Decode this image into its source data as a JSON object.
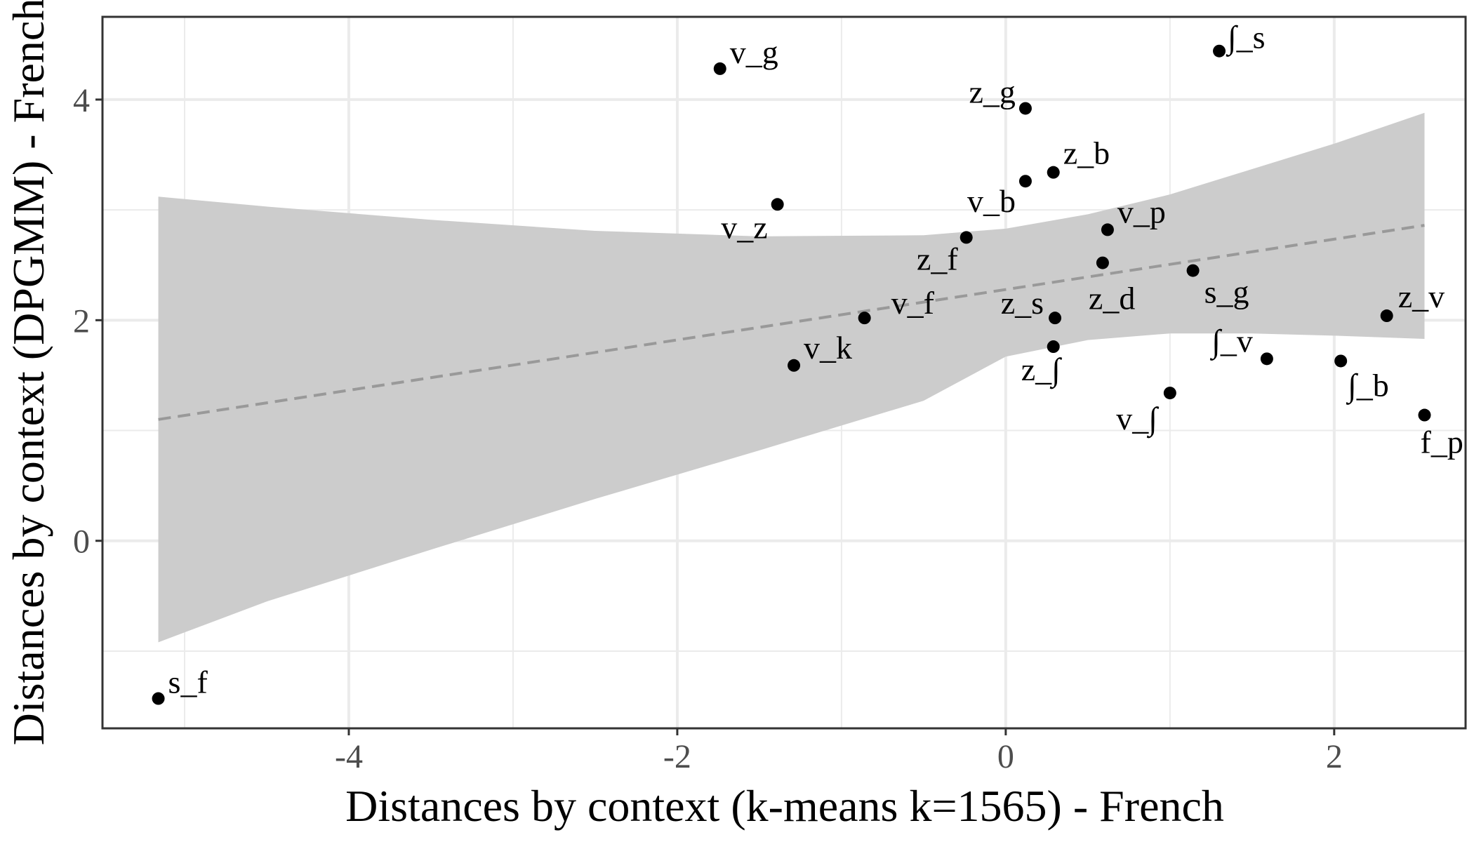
{
  "chart_data": {
    "type": "scatter",
    "title": "",
    "xlabel": "Distances by context (k-means k=1565) - French",
    "ylabel": "Distances by context (DPGMM) - French",
    "xlim": [
      -5.5,
      2.8
    ],
    "ylim": [
      -1.7,
      4.75
    ],
    "x_ticks": [
      -4,
      -2,
      0,
      2
    ],
    "y_ticks": [
      0,
      2,
      4
    ],
    "x_tick_labels": [
      "-4",
      "-2",
      "0",
      "2"
    ],
    "y_tick_labels": [
      "0",
      "2",
      "4"
    ],
    "grid": true,
    "legend": "none",
    "colors": {
      "point": "#000000",
      "trend": "#999999",
      "band": "#cccccc",
      "grid": "#ebebeb",
      "panel_border": "#333333"
    },
    "points": [
      {
        "label": "v_g",
        "x": -1.74,
        "y": 4.28
      },
      {
        "label": "∫_s",
        "x": 1.3,
        "y": 4.44
      },
      {
        "label": "z_g",
        "x": 0.12,
        "y": 3.92
      },
      {
        "label": "z_b",
        "x": 0.29,
        "y": 3.34
      },
      {
        "label": "v_b",
        "x": 0.12,
        "y": 3.26
      },
      {
        "label": "v_z",
        "x": -1.39,
        "y": 3.05
      },
      {
        "label": "v_p",
        "x": 0.62,
        "y": 2.82
      },
      {
        "label": "z_f",
        "x": -0.24,
        "y": 2.75
      },
      {
        "label": "z_d",
        "x": 0.59,
        "y": 2.52
      },
      {
        "label": "s_g",
        "x": 1.14,
        "y": 2.45
      },
      {
        "label": "v_f",
        "x": -0.86,
        "y": 2.02
      },
      {
        "label": "z_s",
        "x": 0.3,
        "y": 2.02
      },
      {
        "label": "z_v",
        "x": 2.32,
        "y": 2.04
      },
      {
        "label": "z_∫",
        "x": 0.29,
        "y": 1.76
      },
      {
        "label": "∫_v",
        "x": 1.59,
        "y": 1.65
      },
      {
        "label": "v_k",
        "x": -1.29,
        "y": 1.59
      },
      {
        "label": "∫_b",
        "x": 2.04,
        "y": 1.63
      },
      {
        "label": "v_∫",
        "x": 1.0,
        "y": 1.34
      },
      {
        "label": "f_p",
        "x": 2.55,
        "y": 1.14
      },
      {
        "label": "s_f",
        "x": -5.16,
        "y": -1.43
      }
    ],
    "trend": {
      "style": "dashed",
      "x": [
        -5.16,
        2.55
      ],
      "y": [
        1.1,
        2.86
      ]
    },
    "confidence_band": {
      "x": [
        -5.16,
        -4.5,
        -3.5,
        -2.5,
        -1.5,
        -0.5,
        0.0,
        0.5,
        1.0,
        1.5,
        2.0,
        2.55
      ],
      "upper": [
        3.12,
        3.03,
        2.91,
        2.81,
        2.76,
        2.77,
        2.83,
        2.96,
        3.14,
        3.37,
        3.6,
        3.88
      ],
      "lower": [
        -0.92,
        -0.55,
        -0.08,
        0.38,
        0.82,
        1.27,
        1.67,
        1.82,
        1.88,
        1.88,
        1.86,
        1.83
      ]
    }
  }
}
